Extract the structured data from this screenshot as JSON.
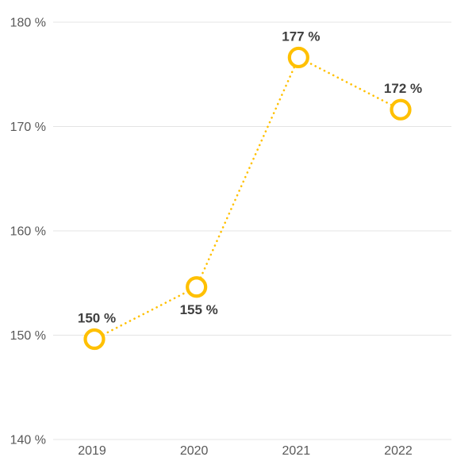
{
  "chart_data": {
    "type": "line",
    "title": "",
    "xlabel": "",
    "ylabel": "",
    "legend": "none",
    "grid": "horizontal",
    "categories": [
      "2019",
      "2020",
      "2021",
      "2022"
    ],
    "series": [
      {
        "name": "series-1",
        "values": [
          150,
          155,
          177,
          172
        ],
        "data_labels": [
          "150 %",
          "155 %",
          "177 %",
          "172 %"
        ],
        "label_positions": [
          "above",
          "below",
          "above",
          "above"
        ],
        "line_style": "dotted",
        "marker": "open-circle"
      }
    ],
    "ylim": [
      140,
      180
    ],
    "y_ticks": [
      {
        "value": 180,
        "label": "180 %"
      },
      {
        "value": 170,
        "label": "170 %"
      },
      {
        "value": 160,
        "label": "160 %"
      },
      {
        "value": 150,
        "label": "150 %"
      },
      {
        "value": 140,
        "label": "140 %"
      }
    ],
    "colors": {
      "series": "#FFC000",
      "grid": "#E4E4E4",
      "marker_fill": "#FFFFFF",
      "data_label": "#3F3F3F",
      "tick_label": "#595959",
      "background": "#FFFFFF"
    }
  }
}
